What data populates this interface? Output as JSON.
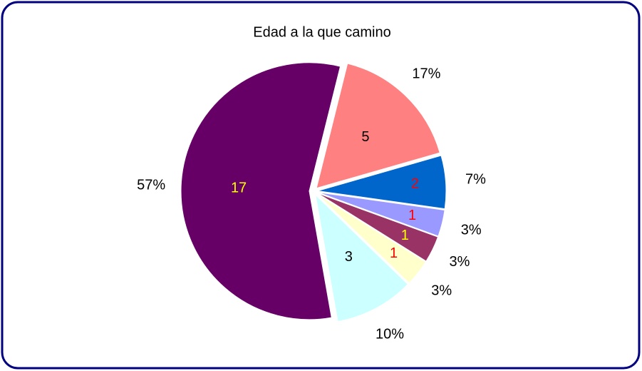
{
  "chart_data": {
    "type": "pie",
    "title": "Edad a la que camino",
    "values": [
      5,
      2,
      1,
      1,
      1,
      3,
      17
    ],
    "percent_labels": [
      "17%",
      "7%",
      "3%",
      "3%",
      "3%",
      "10%",
      "57%"
    ],
    "colors": [
      "#ff8080",
      "#0066cc",
      "#9999ff",
      "#993366",
      "#ffffcc",
      "#ccffff",
      "#660066"
    ],
    "label_colors": [
      "#000000",
      "#ff0000",
      "#ff0000",
      "#ffff00",
      "#ff0000",
      "#000000",
      "#ffff00"
    ]
  }
}
